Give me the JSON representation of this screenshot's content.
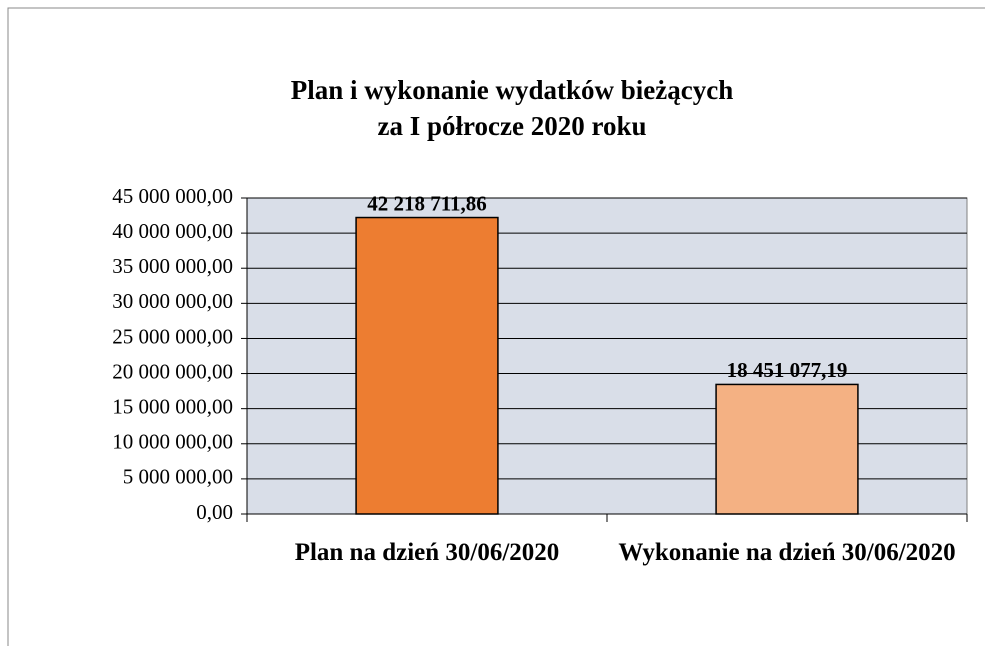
{
  "chart_data": {
    "type": "bar",
    "title": [
      "Plan i wykonanie wydatków bieżących",
      "za I półrocze 2020 roku"
    ],
    "categories": [
      "Plan na dzień 30/06/2020",
      "Wykonanie na dzień 30/06/2020"
    ],
    "values": [
      42218711.86,
      18451077.19
    ],
    "value_labels": [
      "42 218 711,86",
      "18 451 077,19"
    ],
    "colors": [
      "#ed7d31",
      "#f4b183"
    ],
    "ylim": [
      0,
      45000000
    ],
    "yticks": [
      {
        "value": 0,
        "label": "0,00"
      },
      {
        "value": 5000000,
        "label": "5 000 000,00"
      },
      {
        "value": 10000000,
        "label": "10 000 000,00"
      },
      {
        "value": 15000000,
        "label": "15 000 000,00"
      },
      {
        "value": 20000000,
        "label": "20 000 000,00"
      },
      {
        "value": 25000000,
        "label": "25 000 000,00"
      },
      {
        "value": 30000000,
        "label": "30 000 000,00"
      },
      {
        "value": 35000000,
        "label": "35 000 000,00"
      },
      {
        "value": 40000000,
        "label": "40 000 000,00"
      },
      {
        "value": 45000000,
        "label": "45 000 000,00"
      }
    ],
    "grid": true
  }
}
